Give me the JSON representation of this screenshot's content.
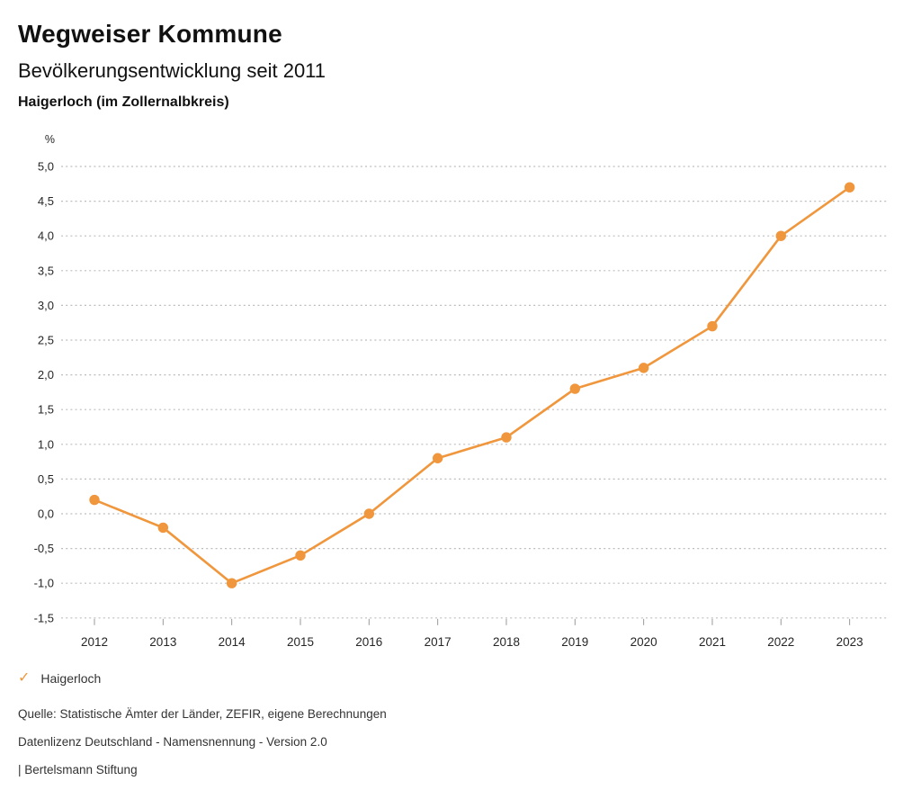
{
  "header": {
    "title": "Wegweiser Kommune",
    "subtitle": "Bevölkerungsentwicklung seit 2011",
    "location": "Haigerloch (im Zollernalbkreis)"
  },
  "chart_data": {
    "type": "line",
    "title": "Bevölkerungsentwicklung seit 2011",
    "unit_label": "%",
    "x": [
      2012,
      2013,
      2014,
      2015,
      2016,
      2017,
      2018,
      2019,
      2020,
      2021,
      2022,
      2023
    ],
    "series": [
      {
        "name": "Haigerloch",
        "values": [
          0.2,
          -0.2,
          -1.0,
          -0.6,
          0.0,
          0.8,
          1.1,
          1.8,
          2.1,
          2.7,
          4.0,
          4.7
        ],
        "color": "#F0963C"
      }
    ],
    "ylim": [
      -1.5,
      5.0
    ],
    "y_tick_step": 0.5,
    "y_tick_labels": [
      "5,0",
      "4,5",
      "4,0",
      "3,5",
      "3,0",
      "2,5",
      "2,0",
      "1,5",
      "1,0",
      "0,5",
      "0,0",
      "-0,5",
      "-1,0",
      "-1,5"
    ],
    "grid": "horizontal dotted",
    "legend_position": "bottom-left"
  },
  "legend": {
    "label": "Haigerloch",
    "checkmark": "✓",
    "checkmark_color": "#F0963C"
  },
  "footer": {
    "source": "Quelle: Statistische Ämter der Länder, ZEFIR, eigene Berechnungen",
    "license": "Datenlizenz Deutschland - Namensnennung - Version 2.0",
    "brand": "| Bertelsmann Stiftung"
  },
  "colors": {
    "line": "#F0963C",
    "grid": "#BDBDBD",
    "tick": "#999999",
    "axis_text": "#262626",
    "title_text": "#111111"
  }
}
